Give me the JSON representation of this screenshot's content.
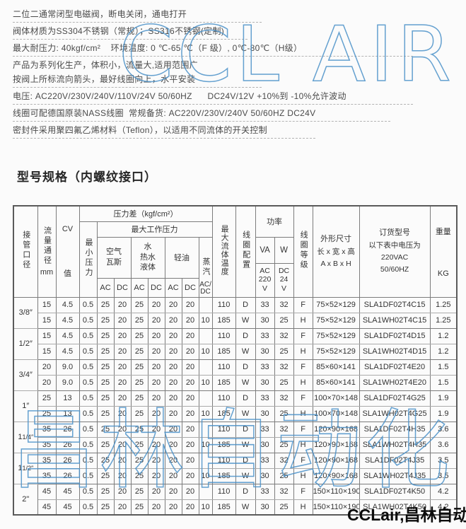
{
  "watermarks": {
    "top": "CCL AIR",
    "bottom": "昌林自动化",
    "color": "#4a90c8"
  },
  "brand_label": "CCLair,昌林自动化",
  "specs": {
    "lines": [
      "二位二通常闭型电磁阀，断电关闭，通电打开",
      "阀体材质为SS304不锈钢（常规）；SS316不锈钢(定制)",
      "最大耐压力: 40kgf/cm²    环境温度: 0 ℃-65 ℃（F 级）, 0℃-80℃（H级）",
      "产品为系列化生产，体积小，流量大,适用范围广",
      "按阀上所标流向箭头，最好线圈向上，水平安装",
      "电压: AC220V/230V/240V/110V/24V 50/60HZ      DC24V/12V +10%到 -10%允许波动",
      "线圈可配德国原装NASS线圈  常规备货: AC220V/230V/240V 50/60HZ DC24V",
      "密封件采用聚四氟乙烯材料（Teflon），以适用不同流体的开关控制"
    ]
  },
  "section_title": "型号规格（内螺纹接口）",
  "table": {
    "header": {
      "pipe_size": "接管口径",
      "flow": "流量通径",
      "flow_unit": "mm",
      "cv": "CV",
      "cv_value": "值",
      "pressure_diff": "压力差（kgf/cm²）",
      "max_working": "最大工作压力",
      "min_pressure": "最小压力",
      "air_gas": "空气\n瓦斯",
      "water": "水\n热水\n液体",
      "light_oil": "轻油",
      "steam": "蒸汽",
      "steam_acdc": "AC/\nDC",
      "ac": "AC",
      "dc": "DC",
      "max_fluid_temp": "最大流体温度",
      "coil_config": "线圈配置",
      "power": "功率",
      "power_va": "VA",
      "power_va_sub": "AC\n220\nV",
      "power_w": "W",
      "power_w_sub": "DC\n24\nV",
      "coil_grade": "线圈等级",
      "dims_title": "外形尺寸",
      "dims_sub": "长 x 宽 x 高",
      "dims_formula": "A x B x H",
      "order_title": "订货型号",
      "order_note": "以下表中电压为",
      "order_voltage": "220VAC",
      "order_freq": "50/60HZ",
      "weight": "重量",
      "weight_unit": "KG"
    },
    "groups": [
      {
        "size": [
          "3/8″"
        ],
        "rows": [
          [
            "15",
            "4.5",
            "0.5",
            "25",
            "20",
            "25",
            "20",
            "20",
            "20",
            "",
            "110",
            "D",
            "33",
            "32",
            "F",
            "75×52×129",
            "SLA1DF02T4C15",
            "1.25"
          ],
          [
            "15",
            "4.5",
            "0.5",
            "25",
            "20",
            "25",
            "20",
            "20",
            "20",
            "10",
            "185",
            "W",
            "30",
            "25",
            "H",
            "75×52×129",
            "SLA1WH02T4C15",
            "1.25"
          ]
        ]
      },
      {
        "size": [
          "1/2″"
        ],
        "rows": [
          [
            "15",
            "4.5",
            "0.5",
            "25",
            "20",
            "25",
            "20",
            "20",
            "20",
            "",
            "110",
            "D",
            "33",
            "32",
            "F",
            "75×52×129",
            "SLA1DF02T4D15",
            "1.2"
          ],
          [
            "15",
            "4.5",
            "0.5",
            "25",
            "20",
            "25",
            "20",
            "20",
            "20",
            "10",
            "185",
            "W",
            "30",
            "25",
            "H",
            "75×52×129",
            "SLA1WH02T4D15",
            "1.2"
          ]
        ]
      },
      {
        "size": [
          "3/4″"
        ],
        "rows": [
          [
            "20",
            "9.0",
            "0.5",
            "25",
            "20",
            "25",
            "20",
            "20",
            "20",
            "",
            "110",
            "D",
            "33",
            "32",
            "F",
            "85×60×141",
            "SLA1DF02T4E20",
            "1.5"
          ],
          [
            "20",
            "9.0",
            "0.5",
            "25",
            "20",
            "25",
            "20",
            "20",
            "20",
            "10",
            "185",
            "W",
            "30",
            "25",
            "H",
            "85×60×141",
            "SLA1WH02T4E20",
            "1.5"
          ]
        ]
      },
      {
        "size": [
          "1″"
        ],
        "rows": [
          [
            "25",
            "13",
            "0.5",
            "25",
            "20",
            "25",
            "20",
            "20",
            "20",
            "",
            "110",
            "D",
            "33",
            "32",
            "F",
            "100×70×148",
            "SLA1DF02T4G25",
            "1.9"
          ],
          [
            "25",
            "13",
            "0.5",
            "25",
            "20",
            "25",
            "20",
            "20",
            "20",
            "10",
            "185",
            "W",
            "30",
            "25",
            "H",
            "100×70×148",
            "SLA1WH02T4G25",
            "1.9"
          ]
        ]
      },
      {
        "size": [
          "1",
          "1/4″"
        ],
        "rows": [
          [
            "35",
            "26",
            "0.5",
            "25",
            "20",
            "25",
            "20",
            "20",
            "20",
            "",
            "110",
            "D",
            "33",
            "32",
            "F",
            "120×90×168",
            "SLA1DF02T4H35",
            "3.6"
          ],
          [
            "35",
            "26",
            "0.5",
            "25",
            "20",
            "25",
            "20",
            "20",
            "20",
            "10",
            "185",
            "W",
            "30",
            "25",
            "H",
            "120×90×168",
            "SLA1WH02T4H35",
            "3.6"
          ]
        ]
      },
      {
        "size": [
          "1",
          "1/2″"
        ],
        "rows": [
          [
            "35",
            "26",
            "0.5",
            "25",
            "20",
            "25",
            "20",
            "20",
            "20",
            "",
            "110",
            "D",
            "33",
            "32",
            "F",
            "120×90×168",
            "SLA1DF02T4J35",
            "3.5"
          ],
          [
            "35",
            "26",
            "0.5",
            "25",
            "20",
            "25",
            "20",
            "20",
            "20",
            "10",
            "185",
            "W",
            "30",
            "25",
            "H",
            "120×90×168",
            "SLA1WH02T4J35",
            "3.5"
          ]
        ]
      },
      {
        "size": [
          "2\""
        ],
        "rows": [
          [
            "45",
            "45",
            "0.5",
            "25",
            "20",
            "25",
            "20",
            "20",
            "20",
            "",
            "110",
            "D",
            "33",
            "32",
            "F",
            "150×110×190",
            "SLA1DF02T4K50",
            "4.2"
          ],
          [
            "45",
            "45",
            "0.5",
            "25",
            "20",
            "25",
            "20",
            "20",
            "20",
            "10",
            "185",
            "W",
            "30",
            "25",
            "H",
            "150×110×190",
            "SLA1WH02T4K50",
            "4.2"
          ]
        ]
      }
    ]
  }
}
